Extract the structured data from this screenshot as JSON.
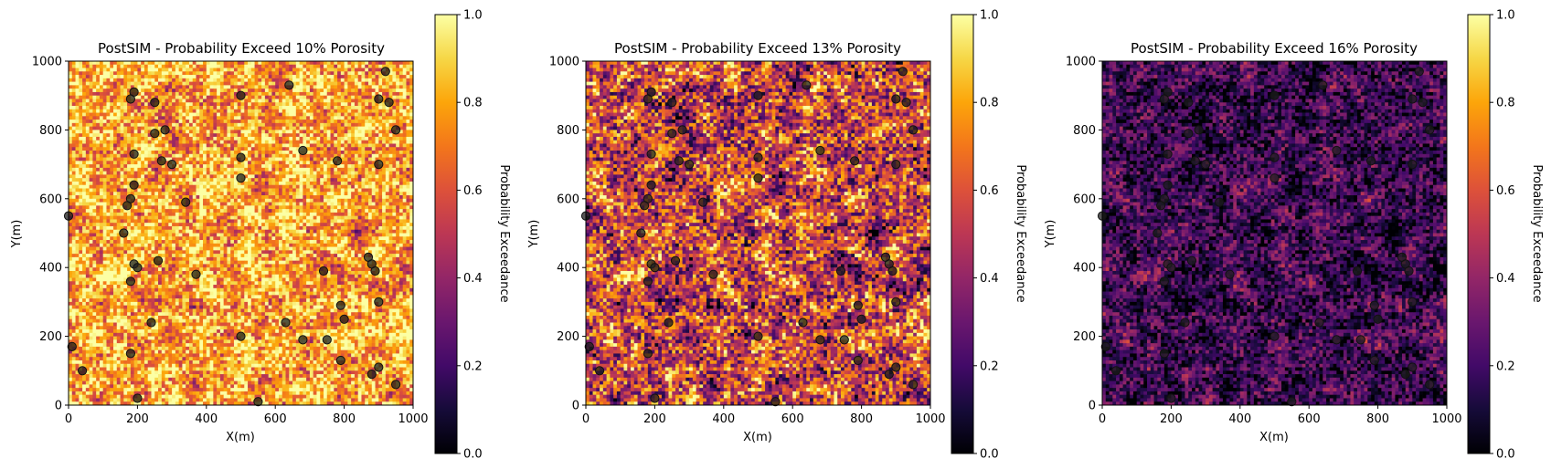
{
  "chart_data": [
    {
      "type": "heatmap",
      "title": "PostSIM - Probability Exceed 10% Porosity",
      "xlabel": "X(m)",
      "ylabel": "Y(m)",
      "xlim": [
        0,
        1000
      ],
      "ylim": [
        0,
        1000
      ],
      "xticks": [
        "0",
        "200",
        "400",
        "600",
        "800",
        "1000"
      ],
      "yticks": [
        "0",
        "200",
        "400",
        "600",
        "800",
        "1000"
      ],
      "colorbar": {
        "label": "Probability Exceedance",
        "range": [
          0.0,
          1.0
        ],
        "ticks": [
          "0.0",
          "0.2",
          "0.4",
          "0.6",
          "0.8",
          "1.0"
        ],
        "colormap": "inferno"
      },
      "field_mean": 0.8,
      "field_spread": 0.16,
      "wells": [
        [
          190,
          910
        ],
        [
          180,
          890
        ],
        [
          250,
          880
        ],
        [
          500,
          900
        ],
        [
          640,
          930
        ],
        [
          920,
          970
        ],
        [
          900,
          890
        ],
        [
          930,
          880
        ],
        [
          250,
          790
        ],
        [
          280,
          800
        ],
        [
          950,
          800
        ],
        [
          190,
          730
        ],
        [
          270,
          710
        ],
        [
          300,
          700
        ],
        [
          680,
          740
        ],
        [
          780,
          710
        ],
        [
          500,
          720
        ],
        [
          900,
          700
        ],
        [
          500,
          660
        ],
        [
          190,
          640
        ],
        [
          180,
          600
        ],
        [
          340,
          590
        ],
        [
          170,
          580
        ],
        [
          0,
          550
        ],
        [
          160,
          500
        ],
        [
          190,
          410
        ],
        [
          200,
          400
        ],
        [
          260,
          420
        ],
        [
          180,
          360
        ],
        [
          370,
          380
        ],
        [
          740,
          390
        ],
        [
          870,
          430
        ],
        [
          880,
          410
        ],
        [
          890,
          390
        ],
        [
          790,
          290
        ],
        [
          800,
          250
        ],
        [
          900,
          300
        ],
        [
          240,
          240
        ],
        [
          630,
          240
        ],
        [
          500,
          200
        ],
        [
          680,
          190
        ],
        [
          750,
          190
        ],
        [
          10,
          170
        ],
        [
          180,
          150
        ],
        [
          790,
          130
        ],
        [
          40,
          100
        ],
        [
          900,
          110
        ],
        [
          880,
          90
        ],
        [
          950,
          60
        ],
        [
          200,
          20
        ],
        [
          550,
          10
        ]
      ]
    },
    {
      "type": "heatmap",
      "title": "PostSIM - Probability Exceed 13% Porosity",
      "xlabel": "X(m)",
      "ylabel": "Y(m)",
      "xlim": [
        0,
        1000
      ],
      "ylim": [
        0,
        1000
      ],
      "xticks": [
        "0",
        "200",
        "400",
        "600",
        "800",
        "1000"
      ],
      "yticks": [
        "0",
        "200",
        "400",
        "600",
        "800",
        "1000"
      ],
      "colorbar": {
        "label": "Probability Exceedance",
        "range": [
          0.0,
          1.0
        ],
        "ticks": [
          "0.0",
          "0.2",
          "0.4",
          "0.6",
          "0.8",
          "1.0"
        ],
        "colormap": "inferno"
      },
      "field_mean": 0.55,
      "field_spread": 0.22,
      "wells": [
        [
          190,
          910
        ],
        [
          180,
          890
        ],
        [
          250,
          880
        ],
        [
          500,
          900
        ],
        [
          640,
          930
        ],
        [
          920,
          970
        ],
        [
          900,
          890
        ],
        [
          930,
          880
        ],
        [
          250,
          790
        ],
        [
          280,
          800
        ],
        [
          950,
          800
        ],
        [
          190,
          730
        ],
        [
          270,
          710
        ],
        [
          300,
          700
        ],
        [
          680,
          740
        ],
        [
          780,
          710
        ],
        [
          500,
          720
        ],
        [
          900,
          700
        ],
        [
          500,
          660
        ],
        [
          190,
          640
        ],
        [
          180,
          600
        ],
        [
          340,
          590
        ],
        [
          170,
          580
        ],
        [
          0,
          550
        ],
        [
          160,
          500
        ],
        [
          190,
          410
        ],
        [
          200,
          400
        ],
        [
          260,
          420
        ],
        [
          180,
          360
        ],
        [
          370,
          380
        ],
        [
          740,
          390
        ],
        [
          870,
          430
        ],
        [
          880,
          410
        ],
        [
          890,
          390
        ],
        [
          790,
          290
        ],
        [
          800,
          250
        ],
        [
          900,
          300
        ],
        [
          240,
          240
        ],
        [
          630,
          240
        ],
        [
          500,
          200
        ],
        [
          680,
          190
        ],
        [
          750,
          190
        ],
        [
          10,
          170
        ],
        [
          180,
          150
        ],
        [
          790,
          130
        ],
        [
          40,
          100
        ],
        [
          900,
          110
        ],
        [
          880,
          90
        ],
        [
          950,
          60
        ],
        [
          200,
          20
        ],
        [
          550,
          10
        ]
      ]
    },
    {
      "type": "heatmap",
      "title": "PostSIM - Probability Exceed 16% Porosity",
      "xlabel": "X(m)",
      "ylabel": "Y(m)",
      "xlim": [
        0,
        1000
      ],
      "ylim": [
        0,
        1000
      ],
      "xticks": [
        "0",
        "200",
        "400",
        "600",
        "800",
        "1000"
      ],
      "yticks": [
        "0",
        "200",
        "400",
        "600",
        "800",
        "1000"
      ],
      "colorbar": {
        "label": "Probability Exceedance",
        "range": [
          0.0,
          1.0
        ],
        "ticks": [
          "0.0",
          "0.2",
          "0.4",
          "0.6",
          "0.8",
          "1.0"
        ],
        "colormap": "inferno"
      },
      "field_mean": 0.18,
      "field_spread": 0.13,
      "wells": [
        [
          190,
          910
        ],
        [
          180,
          890
        ],
        [
          250,
          880
        ],
        [
          500,
          900
        ],
        [
          640,
          930
        ],
        [
          920,
          970
        ],
        [
          900,
          890
        ],
        [
          930,
          880
        ],
        [
          250,
          790
        ],
        [
          280,
          800
        ],
        [
          950,
          800
        ],
        [
          190,
          730
        ],
        [
          270,
          710
        ],
        [
          300,
          700
        ],
        [
          680,
          740
        ],
        [
          780,
          710
        ],
        [
          500,
          720
        ],
        [
          900,
          700
        ],
        [
          500,
          660
        ],
        [
          190,
          640
        ],
        [
          180,
          600
        ],
        [
          340,
          590
        ],
        [
          170,
          580
        ],
        [
          0,
          550
        ],
        [
          160,
          500
        ],
        [
          190,
          410
        ],
        [
          200,
          400
        ],
        [
          260,
          420
        ],
        [
          180,
          360
        ],
        [
          370,
          380
        ],
        [
          740,
          390
        ],
        [
          870,
          430
        ],
        [
          880,
          410
        ],
        [
          890,
          390
        ],
        [
          790,
          290
        ],
        [
          800,
          250
        ],
        [
          900,
          300
        ],
        [
          240,
          240
        ],
        [
          630,
          240
        ],
        [
          500,
          200
        ],
        [
          680,
          190
        ],
        [
          750,
          190
        ],
        [
          10,
          170
        ],
        [
          180,
          150
        ],
        [
          790,
          130
        ],
        [
          40,
          100
        ],
        [
          900,
          110
        ],
        [
          880,
          90
        ],
        [
          950,
          60
        ],
        [
          200,
          20
        ],
        [
          550,
          10
        ]
      ]
    }
  ]
}
